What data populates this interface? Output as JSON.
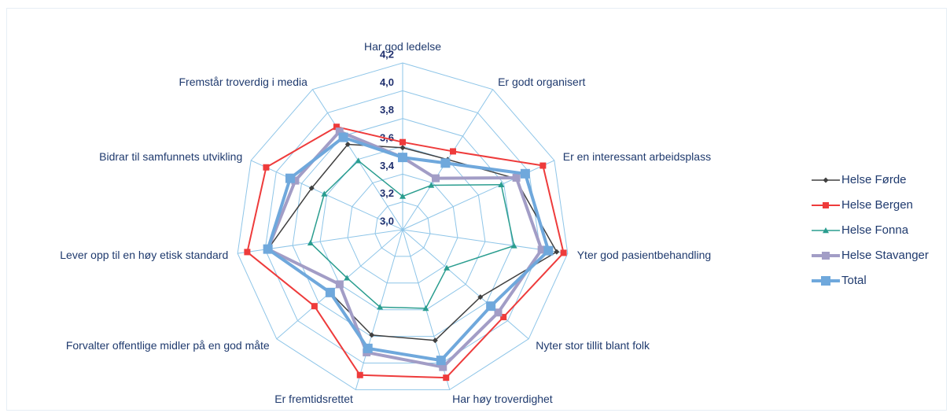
{
  "chart_data": {
    "type": "radar",
    "categories": [
      "Har god ledelse",
      "Er godt organisert",
      "Er en interessant arbeidsplass",
      "Yter god pasientbehandling",
      "Nyter stor tillit blant folk",
      "Har høy troverdighet",
      "Er fremtidsrettet",
      "Forvalter offentlige midler på en god måte",
      "Lever opp til en høy etisk standard",
      "Bidrar til samfunnets utvikling",
      "Fremstår troverdig i media"
    ],
    "rlim": [
      3.0,
      4.2
    ],
    "rticks": [
      {
        "value": 3.0,
        "label": "3,0"
      },
      {
        "value": 3.2,
        "label": "3,2"
      },
      {
        "value": 3.4,
        "label": "3,4"
      },
      {
        "value": 3.6,
        "label": "3,6"
      },
      {
        "value": 3.8,
        "label": "3,8"
      },
      {
        "value": 4.0,
        "label": "4,0"
      },
      {
        "value": 4.2,
        "label": "4,2"
      }
    ],
    "legend": "right",
    "series": [
      {
        "name": "Helse Førde",
        "color": "#404040",
        "marker": "diamond",
        "values": [
          3.59,
          3.6,
          3.89,
          4.12,
          3.74,
          3.83,
          3.79,
          3.69,
          3.98,
          3.72,
          3.73
        ]
      },
      {
        "name": "Helse Bergen",
        "color": "#ee3b3b",
        "marker": "square",
        "values": [
          3.63,
          3.67,
          4.11,
          4.17,
          3.96,
          4.11,
          4.09,
          3.84,
          4.13,
          4.08,
          3.88
        ]
      },
      {
        "name": "Helse Fonna",
        "color": "#2a9d8f",
        "marker": "triangle",
        "values": [
          3.24,
          3.38,
          3.78,
          3.81,
          3.42,
          3.59,
          3.58,
          3.53,
          3.67,
          3.62,
          3.59
        ]
      },
      {
        "name": "Helse Stavanger",
        "color": "#a29dc6",
        "marker": "square",
        "values": [
          3.52,
          3.44,
          3.9,
          4.01,
          3.91,
          4.03,
          3.92,
          3.6,
          3.98,
          3.85,
          3.84
        ]
      },
      {
        "name": "Total",
        "color": "#6fa8dc",
        "marker": "square",
        "values": [
          3.52,
          3.57,
          3.97,
          4.06,
          3.84,
          3.98,
          3.89,
          3.69,
          3.98,
          3.89,
          3.79
        ]
      }
    ]
  }
}
